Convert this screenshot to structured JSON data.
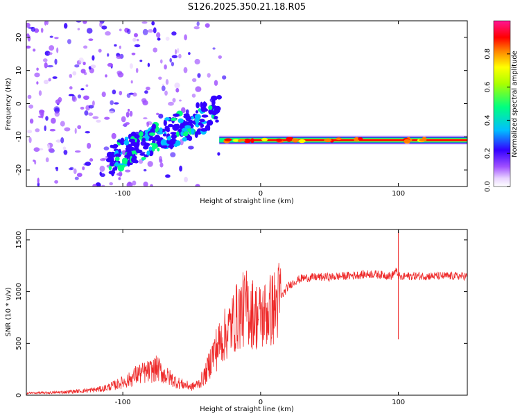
{
  "title": "S126.2025.350.21.18.R05",
  "chart_data": [
    {
      "type": "heatmap",
      "xlabel": "Height of straight line (km)",
      "ylabel": "Frequency (Hz)",
      "xlim": [
        -170,
        150
      ],
      "ylim": [
        -25,
        25
      ],
      "x_ticks": [
        -100,
        0,
        100
      ],
      "y_ticks": [
        20,
        10,
        0,
        -10,
        -20
      ],
      "colorbar": {
        "label": "Normalized spectral amplitude",
        "range": [
          0,
          1
        ],
        "ticks": [
          0.0,
          0.2,
          0.4,
          0.6,
          0.8
        ],
        "colors": [
          "#ffffff",
          "#d9b6ff",
          "#8a2be2",
          "#3300ff",
          "#00bfff",
          "#00ff80",
          "#ffff00",
          "#ff8000",
          "#ff0000",
          "#ff1493"
        ]
      },
      "features": [
        {
          "name": "scattered noise",
          "x": [
            -170,
            -20
          ],
          "y": [
            -25,
            25
          ],
          "amplitude": 0.05
        },
        {
          "name": "rising band",
          "x": [
            -110,
            -30
          ],
          "y_start": -17,
          "y_end": -2,
          "amplitude": 0.3
        },
        {
          "name": "steady tone",
          "x": [
            -30,
            150
          ],
          "y": -11,
          "amplitude": 0.9
        }
      ]
    },
    {
      "type": "line",
      "xlabel": "Height of straight line (km)",
      "ylabel": "SNR (10 * v/v)",
      "xlim": [
        -170,
        150
      ],
      "ylim": [
        0,
        1600
      ],
      "x_ticks": [
        -100,
        0,
        100
      ],
      "y_ticks": [
        0,
        500,
        1000,
        1500
      ],
      "color": "#ee2a2a",
      "x": [
        -170,
        -150,
        -130,
        -115,
        -105,
        -95,
        -90,
        -80,
        -75,
        -70,
        -60,
        -50,
        -45,
        -40,
        -35,
        -30,
        -25,
        -20,
        -15,
        -10,
        -5,
        0,
        5,
        10,
        15,
        20,
        25,
        30,
        40,
        50,
        60,
        70,
        80,
        90,
        95,
        98,
        100,
        102,
        105,
        110,
        120,
        130,
        140,
        150
      ],
      "y": [
        20,
        25,
        40,
        60,
        100,
        150,
        200,
        230,
        260,
        200,
        120,
        80,
        110,
        200,
        380,
        500,
        600,
        700,
        800,
        850,
        780,
        750,
        800,
        850,
        950,
        1050,
        1100,
        1130,
        1140,
        1140,
        1150,
        1160,
        1170,
        1160,
        1150,
        1200,
        1160,
        1130,
        1150,
        1150,
        1150,
        1150,
        1150,
        1150
      ],
      "spikes": [
        {
          "x": 100,
          "y": 1580
        },
        {
          "x": 100,
          "y": 540
        }
      ]
    }
  ]
}
